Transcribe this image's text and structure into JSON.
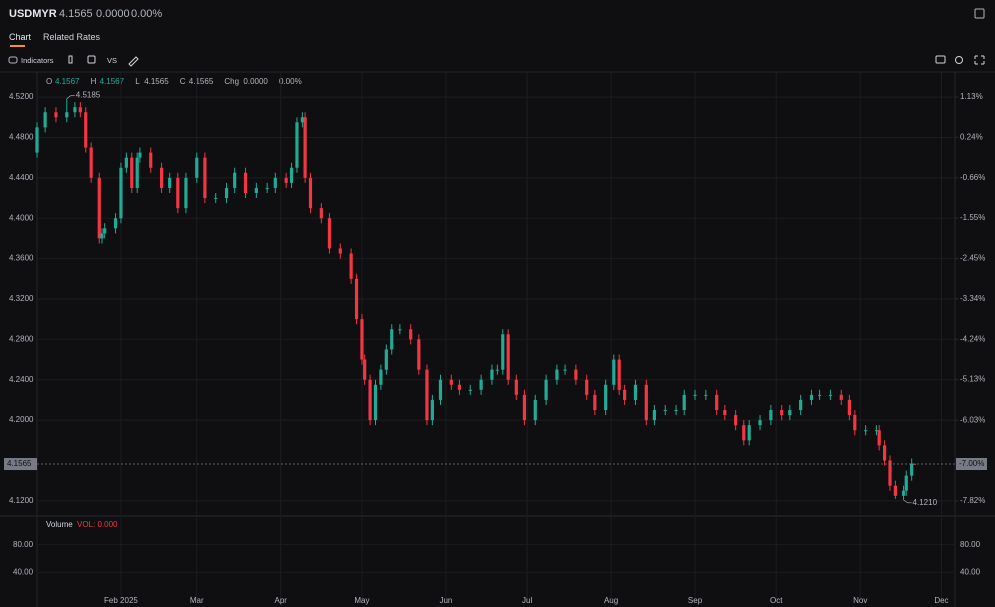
{
  "header": {
    "symbol": "USDMYR",
    "price": "4.1565",
    "change": "0.0000",
    "change_pct": "0.00%"
  },
  "tabs": [
    "Chart",
    "Related Rates"
  ],
  "toolbar": {
    "indicators": "Indicators",
    "compare": "VS"
  },
  "ohlc_legend": [
    {
      "key": "O",
      "value": "4.1567"
    },
    {
      "key": "H",
      "value": "4.1567"
    },
    {
      "key": "L",
      "value": "4.1565"
    },
    {
      "key": "C",
      "value": "4.1565"
    },
    {
      "key": "Chg",
      "value": "0.0000"
    },
    {
      "key": "",
      "value": "0.00%"
    }
  ],
  "chart_data": {
    "type": "candlestick",
    "x": [
      0,
      3,
      7,
      11,
      14,
      16,
      18,
      20,
      23,
      24,
      25,
      29,
      31,
      33,
      35,
      37,
      38,
      42,
      46,
      49,
      52,
      55,
      59,
      62,
      66,
      70,
      73,
      77,
      81,
      85,
      88,
      92,
      94,
      96,
      98,
      99,
      101,
      105,
      108,
      112,
      116,
      118,
      120,
      121,
      123,
      125,
      127,
      129,
      131,
      134,
      138,
      141,
      144,
      146,
      149,
      153,
      156,
      160,
      164,
      168,
      170,
      172,
      174,
      177,
      180,
      184,
      188,
      192,
      195,
      199,
      203,
      206,
      210,
      213,
      215,
      217,
      221,
      225,
      228,
      232,
      236,
      239,
      243,
      247,
      251,
      254,
      258,
      261,
      263,
      267,
      271,
      275,
      278,
      282,
      286,
      289,
      293,
      297,
      300,
      302,
      306,
      310,
      311,
      313,
      315,
      317,
      320,
      321,
      323,
      324
    ],
    "open": [
      4.465,
      4.49,
      4.505,
      4.5,
      4.505,
      4.51,
      4.505,
      4.47,
      4.44,
      4.38,
      4.385,
      4.39,
      4.4,
      4.45,
      4.46,
      4.43,
      4.46,
      4.465,
      4.45,
      4.43,
      4.44,
      4.41,
      4.44,
      4.46,
      4.42,
      4.42,
      4.43,
      4.445,
      4.425,
      4.43,
      4.43,
      4.44,
      4.435,
      4.45,
      4.495,
      4.5,
      4.44,
      4.41,
      4.4,
      4.37,
      4.365,
      4.34,
      4.3,
      4.26,
      4.24,
      4.2,
      4.235,
      4.25,
      4.27,
      4.29,
      4.29,
      4.28,
      4.25,
      4.2,
      4.22,
      4.24,
      4.235,
      4.23,
      4.23,
      4.24,
      4.25,
      4.25,
      4.285,
      4.24,
      4.225,
      4.2,
      4.22,
      4.24,
      4.25,
      4.25,
      4.24,
      4.225,
      4.21,
      4.235,
      4.26,
      4.23,
      4.22,
      4.235,
      4.2,
      4.21,
      4.21,
      4.21,
      4.225,
      4.225,
      4.225,
      4.21,
      4.205,
      4.195,
      4.18,
      4.195,
      4.2,
      4.21,
      4.205,
      4.21,
      4.22,
      4.225,
      4.225,
      4.225,
      4.22,
      4.205,
      4.19,
      4.19,
      4.19,
      4.175,
      4.16,
      4.135,
      4.125,
      4.13,
      4.145,
      4.1567
    ],
    "high": [
      4.495,
      4.51,
      4.51,
      4.5185,
      4.515,
      4.515,
      4.51,
      4.475,
      4.445,
      4.39,
      4.395,
      4.405,
      4.455,
      4.465,
      4.465,
      4.465,
      4.47,
      4.47,
      4.455,
      4.445,
      4.445,
      4.445,
      4.465,
      4.465,
      4.425,
      4.435,
      4.45,
      4.45,
      4.435,
      4.435,
      4.445,
      4.445,
      4.455,
      4.5,
      4.505,
      4.505,
      4.445,
      4.415,
      4.405,
      4.375,
      4.37,
      4.345,
      4.305,
      4.265,
      4.245,
      4.24,
      4.255,
      4.275,
      4.295,
      4.295,
      4.295,
      4.285,
      4.255,
      4.225,
      4.245,
      4.245,
      4.24,
      4.235,
      4.245,
      4.255,
      4.255,
      4.29,
      4.29,
      4.245,
      4.23,
      4.225,
      4.245,
      4.255,
      4.255,
      4.255,
      4.245,
      4.23,
      4.24,
      4.265,
      4.265,
      4.235,
      4.24,
      4.24,
      4.215,
      4.215,
      4.215,
      4.23,
      4.23,
      4.23,
      4.23,
      4.215,
      4.21,
      4.2,
      4.2,
      4.205,
      4.215,
      4.215,
      4.215,
      4.225,
      4.23,
      4.23,
      4.23,
      4.23,
      4.225,
      4.21,
      4.195,
      4.195,
      4.195,
      4.18,
      4.165,
      4.14,
      4.135,
      4.15,
      4.162,
      4.1567
    ],
    "low": [
      4.46,
      4.485,
      4.495,
      4.495,
      4.5,
      4.5,
      4.465,
      4.435,
      4.375,
      4.375,
      4.38,
      4.385,
      4.395,
      4.445,
      4.425,
      4.425,
      4.455,
      4.445,
      4.425,
      4.425,
      4.405,
      4.405,
      4.435,
      4.415,
      4.415,
      4.415,
      4.425,
      4.42,
      4.42,
      4.425,
      4.425,
      4.43,
      4.43,
      4.445,
      4.49,
      4.435,
      4.405,
      4.395,
      4.365,
      4.36,
      4.335,
      4.295,
      4.255,
      4.235,
      4.195,
      4.195,
      4.23,
      4.245,
      4.265,
      4.285,
      4.275,
      4.245,
      4.195,
      4.195,
      4.215,
      4.23,
      4.225,
      4.225,
      4.225,
      4.235,
      4.245,
      4.245,
      4.235,
      4.22,
      4.195,
      4.195,
      4.215,
      4.235,
      4.245,
      4.235,
      4.22,
      4.205,
      4.205,
      4.23,
      4.225,
      4.215,
      4.215,
      4.195,
      4.195,
      4.205,
      4.205,
      4.205,
      4.22,
      4.22,
      4.205,
      4.2,
      4.19,
      4.175,
      4.175,
      4.19,
      4.195,
      4.2,
      4.2,
      4.205,
      4.215,
      4.22,
      4.22,
      4.215,
      4.2,
      4.185,
      4.185,
      4.185,
      4.17,
      4.155,
      4.13,
      4.122,
      4.121,
      4.125,
      4.14,
      4.1565
    ],
    "close": [
      4.49,
      4.505,
      4.5,
      4.505,
      4.51,
      4.505,
      4.47,
      4.44,
      4.38,
      4.385,
      4.39,
      4.4,
      4.45,
      4.46,
      4.43,
      4.46,
      4.465,
      4.45,
      4.43,
      4.44,
      4.41,
      4.44,
      4.46,
      4.42,
      4.42,
      4.43,
      4.445,
      4.425,
      4.43,
      4.43,
      4.44,
      4.435,
      4.45,
      4.495,
      4.5,
      4.44,
      4.41,
      4.4,
      4.37,
      4.365,
      4.34,
      4.3,
      4.26,
      4.24,
      4.2,
      4.235,
      4.25,
      4.27,
      4.29,
      4.29,
      4.28,
      4.25,
      4.2,
      4.22,
      4.24,
      4.235,
      4.23,
      4.23,
      4.24,
      4.25,
      4.25,
      4.285,
      4.24,
      4.225,
      4.2,
      4.22,
      4.24,
      4.25,
      4.25,
      4.24,
      4.225,
      4.21,
      4.235,
      4.26,
      4.23,
      4.22,
      4.235,
      4.2,
      4.21,
      4.21,
      4.21,
      4.225,
      4.225,
      4.225,
      4.21,
      4.205,
      4.195,
      4.18,
      4.195,
      4.2,
      4.21,
      4.205,
      4.21,
      4.22,
      4.225,
      4.225,
      4.225,
      4.22,
      4.205,
      4.19,
      4.19,
      4.19,
      4.175,
      4.16,
      4.135,
      4.125,
      4.13,
      4.145,
      4.157,
      4.1565
    ],
    "up_color": "#22ab94",
    "down_color": "#f23645",
    "xlim": [
      0,
      339
    ],
    "xticks": [
      {
        "value": 31,
        "label": "Feb 2025"
      },
      {
        "value": 59,
        "label": "Mar"
      },
      {
        "value": 90,
        "label": "Apr"
      },
      {
        "value": 120,
        "label": "May"
      },
      {
        "value": 151,
        "label": "Jun"
      },
      {
        "value": 181,
        "label": "Jul"
      },
      {
        "value": 212,
        "label": "Aug"
      },
      {
        "value": 243,
        "label": "Sep"
      },
      {
        "value": 273,
        "label": "Oct"
      },
      {
        "value": 304,
        "label": "Nov"
      },
      {
        "value": 334,
        "label": "Dec"
      }
    ],
    "ylim": [
      4.106,
      4.529
    ],
    "yticks": [
      {
        "value": 4.52,
        "label": "4.5200"
      },
      {
        "value": 4.48,
        "label": "4.4800"
      },
      {
        "value": 4.44,
        "label": "4.4400"
      },
      {
        "value": 4.4,
        "label": "4.4000"
      },
      {
        "value": 4.36,
        "label": "4.3600"
      },
      {
        "value": 4.32,
        "label": "4.3200"
      },
      {
        "value": 4.28,
        "label": "4.2800"
      },
      {
        "value": 4.24,
        "label": "4.2400"
      },
      {
        "value": 4.2,
        "label": "4.2000"
      },
      {
        "value": 4.12,
        "label": "4.1200"
      }
    ],
    "y2lim": [
      -8.13,
      1.33
    ],
    "y2ticks": [
      {
        "value": 1.13,
        "label": "1.13%"
      },
      {
        "value": 0.24,
        "label": "0.24%"
      },
      {
        "value": -0.66,
        "label": "-0.66%"
      },
      {
        "value": -1.55,
        "label": "-1.55%"
      },
      {
        "value": -2.45,
        "label": "-2.45%"
      },
      {
        "value": -3.34,
        "label": "-3.34%"
      },
      {
        "value": -4.24,
        "label": "-4.24%"
      },
      {
        "value": -5.13,
        "label": "-5.13%"
      },
      {
        "value": -6.03,
        "label": "-6.03%"
      },
      {
        "value": -7.82,
        "label": "-7.82%"
      }
    ],
    "grid": true,
    "last_price": {
      "value": 4.1565,
      "label": "4.1565",
      "pct_value": -7.0,
      "pct_label": "-7.00%"
    },
    "annotations": [
      {
        "text": "4.5185"
      },
      {
        "text": "4.1210"
      }
    ],
    "volume": {
      "title": "Volume",
      "legend": "VOL: 0.000",
      "ylim": [
        0,
        120
      ],
      "yticks": [
        {
          "value": 80,
          "label": "80.00"
        },
        {
          "value": 40,
          "label": "40.00"
        }
      ]
    }
  }
}
